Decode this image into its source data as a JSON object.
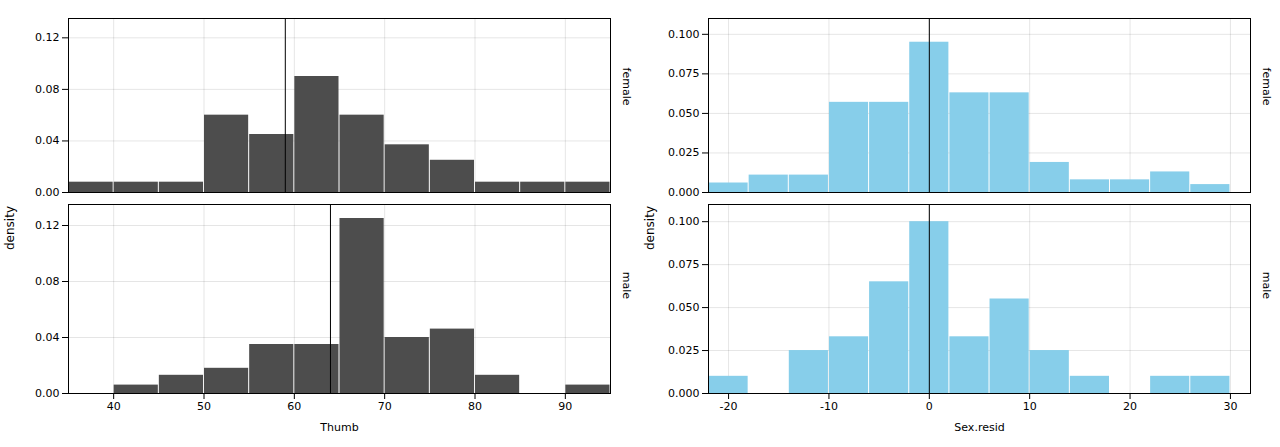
{
  "chart_data": [
    {
      "type": "histogram",
      "title": "female",
      "ylabel": "density",
      "color": "#4d4d4d",
      "bins": [
        35,
        40,
        45,
        50,
        55,
        60,
        65,
        70,
        75,
        80,
        85,
        90,
        95
      ],
      "values": [
        0.008,
        0.008,
        0.008,
        0.06,
        0.045,
        0.09,
        0.06,
        0.037,
        0.025,
        0.008,
        0.008,
        0.008
      ],
      "mean": 59.0,
      "xlim": [
        35,
        95
      ],
      "xticks": [
        40,
        50,
        60,
        70,
        80,
        90
      ],
      "ylim": [
        0,
        0.135
      ],
      "yticks": [
        {
          "value": 0,
          "label": "0.00"
        },
        0.04,
        0.08,
        0.12
      ],
      "grid": true,
      "tick_labels": "y"
    },
    {
      "type": "histogram",
      "title": "male",
      "xlabel": "Thumb",
      "color": "#4d4d4d",
      "bins": [
        35,
        40,
        45,
        50,
        55,
        60,
        65,
        70,
        75,
        80,
        85,
        90,
        95
      ],
      "values": [
        0.0,
        0.006,
        0.013,
        0.018,
        0.035,
        0.035,
        0.125,
        0.04,
        0.046,
        0.013,
        0.0,
        0.006
      ],
      "mean": 64.0,
      "xlim": [
        35,
        95
      ],
      "xticks": [
        40,
        50,
        60,
        70,
        80,
        90
      ],
      "ylim": [
        0,
        0.135
      ],
      "yticks": [
        {
          "value": 0,
          "label": "0.00"
        },
        0.04,
        0.08,
        0.12
      ],
      "grid": true
    },
    {
      "type": "histogram",
      "title": "female",
      "ylabel": "density",
      "color": "#87ceea",
      "bins": [
        -22,
        -18,
        -14,
        -10,
        -6,
        -2,
        2,
        6,
        10,
        14,
        18,
        22,
        26,
        30
      ],
      "values": [
        0.006,
        0.011,
        0.011,
        0.057,
        0.057,
        0.095,
        0.063,
        0.063,
        0.019,
        0.008,
        0.008,
        0.013,
        0.005
      ],
      "mean": 0.0,
      "xlim": [
        -22,
        32
      ],
      "xticks": [
        -20,
        -10,
        0,
        10,
        20,
        30
      ],
      "ylim": [
        0,
        0.11
      ],
      "yticks": [
        {
          "value": 0,
          "label": "0.000"
        },
        0.025,
        {
          "value": 0.05,
          "label": "0.050"
        },
        0.075,
        {
          "value": 0.1,
          "label": "0.100"
        }
      ],
      "grid": true,
      "tick_labels": "y"
    },
    {
      "type": "histogram",
      "title": "male",
      "xlabel": "Sex.resid",
      "color": "#87ceea",
      "bins": [
        -22,
        -18,
        -14,
        -10,
        -6,
        -2,
        2,
        6,
        10,
        14,
        18,
        22,
        26,
        30
      ],
      "values": [
        0.01,
        0.0,
        0.025,
        0.033,
        0.065,
        0.1,
        0.033,
        0.055,
        0.025,
        0.01,
        0.0,
        0.01,
        0.01
      ],
      "mean": 0.0,
      "xlim": [
        -22,
        32
      ],
      "xticks": [
        -20,
        -10,
        0,
        10,
        20,
        30
      ],
      "ylim": [
        0,
        0.11
      ],
      "yticks": [
        {
          "value": 0,
          "label": "0.000"
        },
        0.025,
        {
          "value": 0.05,
          "label": "0.050"
        },
        0.075,
        {
          "value": 0.1,
          "label": "0.100"
        }
      ],
      "grid": true
    }
  ]
}
